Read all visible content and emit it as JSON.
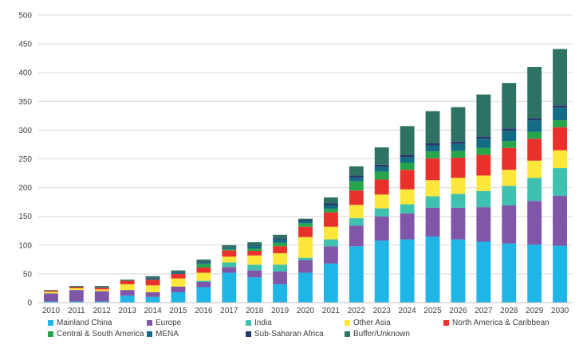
{
  "chart_data": {
    "type": "bar",
    "stacked": true,
    "categories": [
      "2010",
      "2011",
      "2012",
      "2013",
      "2014",
      "2015",
      "2016",
      "2017",
      "2018",
      "2019",
      "2020",
      "2021",
      "2022",
      "2023",
      "2024",
      "2025",
      "2026",
      "2027",
      "2028",
      "2029",
      "2030"
    ],
    "ylim": [
      0,
      500
    ],
    "yticks": [
      0,
      50,
      100,
      150,
      200,
      250,
      300,
      350,
      400,
      450,
      500
    ],
    "grid": true,
    "legend_position": "bottom",
    "series": [
      {
        "name": "Mainland China",
        "color": "#1fb5e6",
        "values": [
          2,
          2,
          2,
          12,
          10,
          18,
          27,
          52,
          44,
          32,
          52,
          68,
          98,
          108,
          110,
          115,
          110,
          106,
          103,
          101,
          99
        ]
      },
      {
        "name": "Europe",
        "color": "#7f56a8",
        "values": [
          14,
          20,
          18,
          10,
          8,
          10,
          9,
          10,
          12,
          22,
          22,
          30,
          36,
          42,
          45,
          50,
          55,
          60,
          66,
          76,
          87
        ]
      },
      {
        "name": "India",
        "color": "#3fc1b0",
        "values": [
          0,
          0,
          0,
          0,
          0,
          0,
          2,
          8,
          10,
          12,
          4,
          12,
          13,
          14,
          16,
          20,
          24,
          28,
          34,
          40,
          48
        ]
      },
      {
        "name": "Other Asia",
        "color": "#fce73a",
        "values": [
          3,
          3,
          3,
          10,
          12,
          14,
          14,
          10,
          16,
          20,
          36,
          22,
          23,
          24,
          26,
          28,
          28,
          27,
          28,
          30,
          31
        ]
      },
      {
        "name": "North America & Caribbean",
        "color": "#e8312b",
        "values": [
          2,
          2,
          3,
          6,
          10,
          8,
          9,
          11,
          8,
          12,
          18,
          25,
          25,
          26,
          34,
          38,
          35,
          36,
          38,
          38,
          40
        ]
      },
      {
        "name": "Central & South America",
        "color": "#27a54a",
        "values": [
          0,
          0,
          0,
          0,
          0,
          0,
          6,
          2,
          4,
          6,
          6,
          6,
          16,
          14,
          12,
          12,
          12,
          12,
          12,
          12,
          12
        ]
      },
      {
        "name": "MENA",
        "color": "#126c83",
        "values": [
          0,
          0,
          0,
          0,
          2,
          2,
          2,
          2,
          4,
          6,
          4,
          6,
          6,
          8,
          10,
          10,
          12,
          16,
          18,
          20,
          22
        ]
      },
      {
        "name": "Sub-Saharan Africa",
        "color": "#243a6a",
        "values": [
          0,
          0,
          0,
          0,
          1,
          1,
          1,
          1,
          1,
          2,
          2,
          4,
          4,
          4,
          4,
          4,
          4,
          4,
          4,
          4,
          4
        ]
      },
      {
        "name": "Buffer/Unknown",
        "color": "#2e7264",
        "values": [
          1,
          2,
          3,
          2,
          3,
          3,
          5,
          4,
          6,
          6,
          2,
          10,
          16,
          30,
          50,
          56,
          60,
          73,
          79,
          89,
          98
        ]
      }
    ]
  }
}
